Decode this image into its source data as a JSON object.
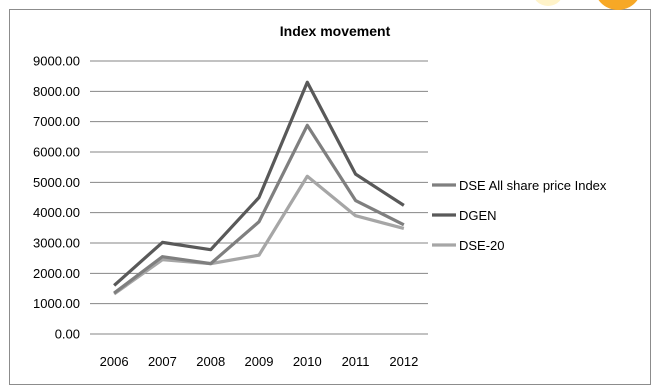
{
  "chart_data": {
    "type": "line",
    "title": "Index movement",
    "xlabel": "",
    "ylabel": "",
    "categories": [
      "2006",
      "2007",
      "2008",
      "2009",
      "2010",
      "2011",
      "2012"
    ],
    "y_ticks": [
      "0.00",
      "1000.00",
      "2000.00",
      "3000.00",
      "4000.00",
      "5000.00",
      "6000.00",
      "7000.00",
      "8000.00",
      "9000.00"
    ],
    "ylim": [
      0,
      9000
    ],
    "grid": "horizontal",
    "legend": "right",
    "series": [
      {
        "name": "DSE All share price Index",
        "color": "#7f7f7f",
        "values": [
          1350,
          2550,
          2320,
          3700,
          6880,
          4400,
          3600
        ]
      },
      {
        "name": "DGEN",
        "color": "#595959",
        "values": [
          1600,
          3020,
          2780,
          4500,
          8300,
          5270,
          4240
        ]
      },
      {
        "name": "DSE-20",
        "color": "#a6a6a6",
        "values": [
          1320,
          2450,
          2320,
          2600,
          5200,
          3900,
          3480
        ]
      }
    ]
  }
}
